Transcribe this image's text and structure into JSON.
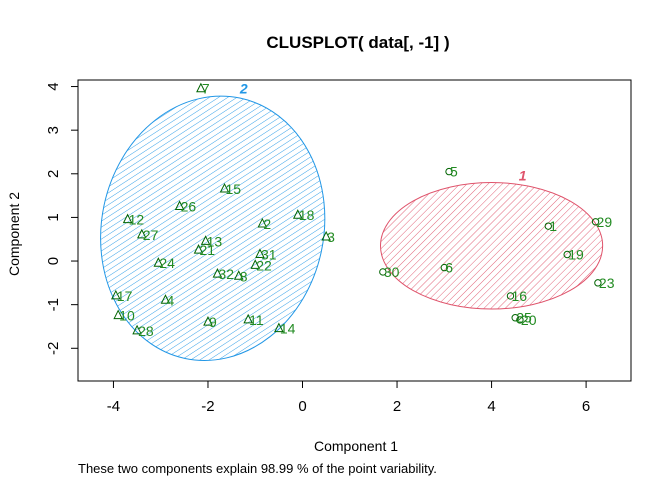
{
  "chart_data": {
    "type": "scatter",
    "title": "CLUSPLOT( data[, -1] )",
    "xlabel": "Component 1",
    "ylabel": "Component 2",
    "subtitle": "These two components explain 98.99 % of the point variability.",
    "xlim": [
      -4.75,
      6.95
    ],
    "ylim": [
      -2.75,
      4.15
    ],
    "xticks": [
      -4,
      -2,
      0,
      2,
      4,
      6
    ],
    "yticks": [
      -2,
      -1,
      0,
      1,
      2,
      3,
      4
    ],
    "grid": false,
    "clusters": [
      {
        "label": "1",
        "color": "#DF536B",
        "ellipse": {
          "cx": 4.0,
          "cy": 0.35,
          "rx": 2.35,
          "ry": 1.45,
          "angle_deg": 0
        },
        "marker": "circle",
        "points": [
          {
            "id": "1",
            "x": 5.2,
            "y": 0.8
          },
          {
            "id": "5",
            "x": 3.1,
            "y": 2.05
          },
          {
            "id": "6",
            "x": 3.0,
            "y": -0.15
          },
          {
            "id": "16",
            "x": 4.4,
            "y": -0.8
          },
          {
            "id": "19",
            "x": 5.6,
            "y": 0.15
          },
          {
            "id": "20",
            "x": 4.6,
            "y": -1.35
          },
          {
            "id": "23",
            "x": 6.25,
            "y": -0.5
          },
          {
            "id": "25",
            "x": 4.5,
            "y": -1.3
          },
          {
            "id": "29",
            "x": 6.2,
            "y": 0.9
          },
          {
            "id": "30",
            "x": 1.7,
            "y": -0.25
          }
        ]
      },
      {
        "label": "2",
        "color": "#2297E6",
        "ellipse": {
          "cx": -1.9,
          "cy": 0.75,
          "rx": 2.35,
          "ry": 3.05,
          "angle_deg": 12
        },
        "marker": "triangle",
        "points": [
          {
            "id": "2",
            "x": -0.85,
            "y": 0.85
          },
          {
            "id": "3",
            "x": 0.5,
            "y": 0.55
          },
          {
            "id": "4",
            "x": -2.9,
            "y": -0.9
          },
          {
            "id": "7",
            "x": -2.15,
            "y": 3.95
          },
          {
            "id": "8",
            "x": -1.35,
            "y": -0.35
          },
          {
            "id": "9",
            "x": -2.0,
            "y": -1.4
          },
          {
            "id": "10",
            "x": -3.9,
            "y": -1.25
          },
          {
            "id": "11",
            "x": -1.15,
            "y": -1.35
          },
          {
            "id": "12",
            "x": -3.7,
            "y": 0.95
          },
          {
            "id": "13",
            "x": -2.05,
            "y": 0.45
          },
          {
            "id": "14",
            "x": -0.5,
            "y": -1.55
          },
          {
            "id": "15",
            "x": -1.65,
            "y": 1.65
          },
          {
            "id": "17",
            "x": -3.95,
            "y": -0.8
          },
          {
            "id": "18",
            "x": -0.1,
            "y": 1.05
          },
          {
            "id": "21",
            "x": -2.2,
            "y": 0.25
          },
          {
            "id": "22",
            "x": -1.0,
            "y": -0.1
          },
          {
            "id": "24",
            "x": -3.05,
            "y": -0.05
          },
          {
            "id": "26",
            "x": -2.6,
            "y": 1.25
          },
          {
            "id": "27",
            "x": -3.4,
            "y": 0.6
          },
          {
            "id": "28",
            "x": -3.5,
            "y": -1.6
          },
          {
            "id": "31",
            "x": -0.9,
            "y": 0.15
          },
          {
            "id": "32",
            "x": -1.8,
            "y": -0.3
          }
        ]
      }
    ],
    "point_label_color": "#228B22",
    "point_marker_color": "#006400"
  }
}
